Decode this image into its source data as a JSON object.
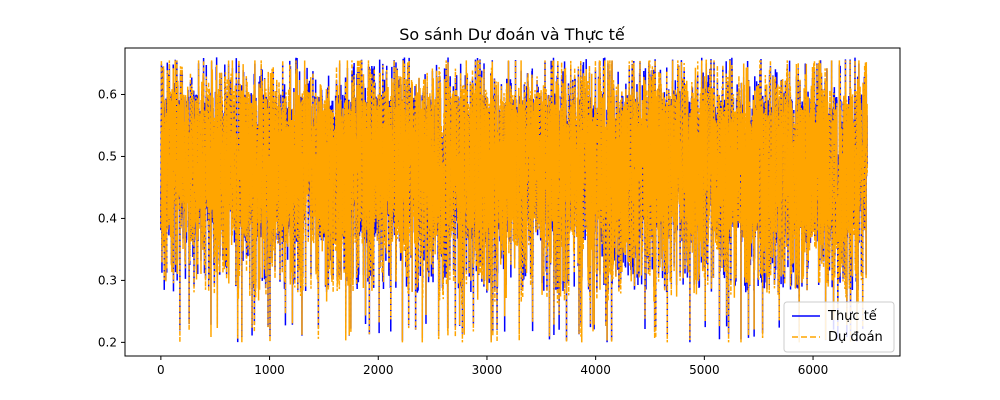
{
  "chart_data": {
    "type": "line",
    "title": "So sánh Dự đoán và Thực tế",
    "xlabel": "",
    "ylabel": "",
    "xlim": [
      -330,
      6800
    ],
    "ylim": [
      0.178,
      0.675
    ],
    "xticks": [
      0,
      1000,
      2000,
      3000,
      4000,
      5000,
      6000
    ],
    "yticks": [
      0.2,
      0.3,
      0.4,
      0.5,
      0.6
    ],
    "xtick_labels": [
      "0",
      "1000",
      "2000",
      "3000",
      "4000",
      "5000",
      "6000"
    ],
    "ytick_labels": [
      "0.2",
      "0.3",
      "0.4",
      "0.5",
      "0.6"
    ],
    "grid": false,
    "legend_position": "lower-right",
    "n_points": 6500,
    "value_range": [
      0.2,
      0.66
    ],
    "typical_band": [
      0.28,
      0.66
    ],
    "series": [
      {
        "name": "Thực tế",
        "color": "#0000ff",
        "style": "solid"
      },
      {
        "name": "Dự đoán",
        "color": "#ffa500",
        "style": "dashed"
      }
    ]
  }
}
